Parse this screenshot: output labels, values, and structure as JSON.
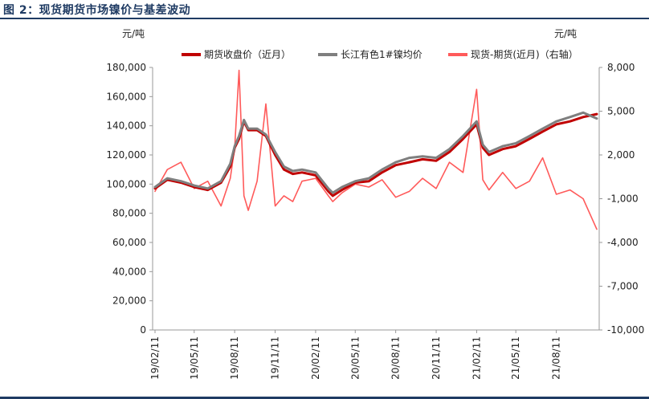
{
  "figure_title": "图 2：现货期货市场镍价与基差波动",
  "chart_data": {
    "type": "line",
    "title": "",
    "y_left": {
      "unit_label": "元/吨",
      "range": [
        0,
        180000
      ],
      "ticks": [
        "0",
        "20,000",
        "40,000",
        "60,000",
        "80,000",
        "100,000",
        "120,000",
        "140,000",
        "160,000",
        "180,000"
      ]
    },
    "y_right": {
      "unit_label": "元/吨",
      "range": [
        -10000,
        8000
      ],
      "ticks": [
        "-10,000",
        "-7,000",
        "-4,000",
        "-1,000",
        "2,000",
        "5,000",
        "8,000"
      ]
    },
    "x_ticks": [
      "19/02/11",
      "19/05/11",
      "19/08/11",
      "19/11/11",
      "20/02/11",
      "20/05/11",
      "20/08/11",
      "20/11/11",
      "21/02/11",
      "21/05/11",
      "21/08/11"
    ],
    "legend": {
      "position": "top"
    },
    "colors": {
      "futures": "#c00000",
      "spot": "#7f7f7f",
      "basis": "#ff5a5a",
      "title": "#1f3b63"
    },
    "x": [
      "19/02/11",
      "19/03/11",
      "19/04/11",
      "19/05/11",
      "19/06/11",
      "19/07/11",
      "19/08/01",
      "19/08/11",
      "19/08/21",
      "19/09/01",
      "19/09/11",
      "19/10/01",
      "19/10/21",
      "19/11/11",
      "19/12/01",
      "19/12/21",
      "20/01/11",
      "20/02/11",
      "20/03/11",
      "20/03/21",
      "20/04/11",
      "20/05/11",
      "20/06/11",
      "20/07/11",
      "20/08/11",
      "20/09/11",
      "20/10/11",
      "20/11/11",
      "20/12/11",
      "21/01/11",
      "21/02/11",
      "21/02/25",
      "21/03/11",
      "21/04/11",
      "21/05/11",
      "21/06/11",
      "21/07/11",
      "21/08/11",
      "21/09/11",
      "21/10/11",
      "21/11/11"
    ],
    "series": [
      {
        "name": "期货收盘价（近月）",
        "axis": "left",
        "values": [
          97000,
          103000,
          101000,
          98000,
          96000,
          101000,
          112000,
          125000,
          131000,
          143000,
          137000,
          137000,
          133000,
          120000,
          110000,
          107000,
          108000,
          106000,
          95000,
          92000,
          96000,
          101000,
          102000,
          108000,
          113000,
          115000,
          117000,
          116000,
          122000,
          131000,
          141000,
          125000,
          120000,
          124000,
          126000,
          131000,
          136000,
          141000,
          143000,
          146000,
          148000
        ]
      },
      {
        "name": "长江有色1#镍均价",
        "axis": "left",
        "values": [
          98000,
          104000,
          102000,
          99000,
          97000,
          102000,
          114000,
          126000,
          133000,
          144000,
          138000,
          138000,
          134000,
          122000,
          112000,
          109000,
          110000,
          108000,
          97000,
          94000,
          98000,
          102000,
          104000,
          110000,
          115000,
          118000,
          119000,
          118000,
          124000,
          133000,
          143000,
          127000,
          122000,
          126000,
          128000,
          133000,
          138000,
          143000,
          146000,
          149000,
          145000
        ]
      },
      {
        "name": "现货-期货(近月)（右轴）",
        "axis": "right",
        "values": [
          -500,
          1000,
          1500,
          -300,
          200,
          -1500,
          400,
          2500,
          7800,
          -800,
          -1800,
          200,
          5500,
          -1500,
          -800,
          -1200,
          200,
          400,
          -800,
          -1200,
          -600,
          0,
          -200,
          300,
          -900,
          -500,
          400,
          -300,
          1500,
          800,
          6500,
          300,
          -400,
          800,
          -300,
          200,
          1800,
          -700,
          -400,
          -1000,
          -3100
        ]
      }
    ]
  }
}
